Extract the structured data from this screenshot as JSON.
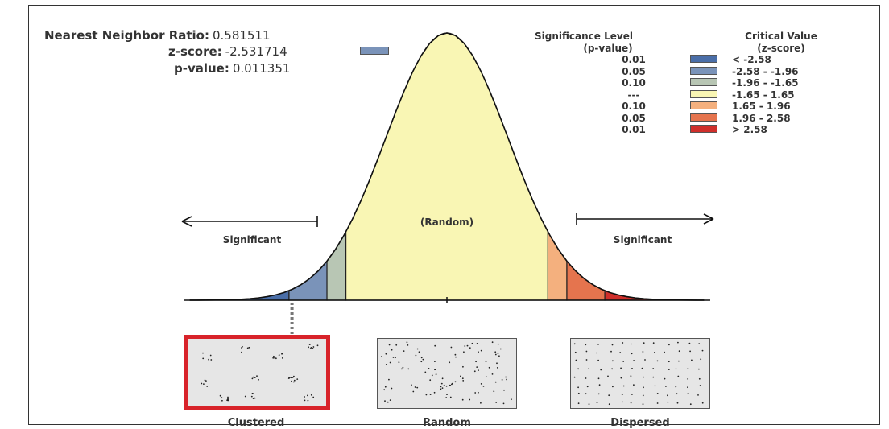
{
  "stats": {
    "nn_ratio": {
      "label": "Nearest Neighbor Ratio:",
      "value": "0.581511"
    },
    "z_score": {
      "label": "z-score:",
      "value": "-2.531714",
      "swatch_color": "#7a93b9"
    },
    "p_value": {
      "label": "p-value:",
      "value": "0.011351"
    }
  },
  "legend": {
    "sig_header": [
      "Significance Level",
      "(p-value)"
    ],
    "crit_header": [
      "Critical Value",
      "(z-score)"
    ],
    "rows": [
      {
        "p": "0.01",
        "color": "#4a6ea8",
        "z": "< -2.58"
      },
      {
        "p": "0.05",
        "color": "#7a93b9",
        "z": "-2.58 - -1.96"
      },
      {
        "p": "0.10",
        "color": "#b8c6b4",
        "z": "-1.96 - -1.65"
      },
      {
        "p": "---",
        "color": "#f9f6b4",
        "z": "-1.65 - 1.65"
      },
      {
        "p": "0.10",
        "color": "#f4b07e",
        "z": "1.65 - 1.96"
      },
      {
        "p": "0.05",
        "color": "#e5744e",
        "z": "1.96 - 2.58"
      },
      {
        "p": "0.01",
        "color": "#cf2f2b",
        "z": "> 2.58"
      }
    ]
  },
  "curve": {
    "center_label": "(Random)",
    "left_label": "Significant",
    "right_label": "Significant",
    "regions": [
      {
        "from": -4.2,
        "to": -2.58,
        "color": "#4a6ea8"
      },
      {
        "from": -2.58,
        "to": -1.96,
        "color": "#7a93b9"
      },
      {
        "from": -1.96,
        "to": -1.65,
        "color": "#b8c6b4"
      },
      {
        "from": -1.65,
        "to": 1.65,
        "color": "#f9f6b4"
      },
      {
        "from": 1.65,
        "to": 1.96,
        "color": "#f4b07e"
      },
      {
        "from": 1.96,
        "to": 2.58,
        "color": "#e5744e"
      },
      {
        "from": 2.58,
        "to": 4.2,
        "color": "#cf2f2b"
      }
    ],
    "marker_z": -2.531714
  },
  "panels": [
    {
      "id": "clustered",
      "label": "Clustered",
      "highlight": true
    },
    {
      "id": "random",
      "label": "Random",
      "highlight": false
    },
    {
      "id": "dispersed",
      "label": "Dispersed",
      "highlight": false
    }
  ]
}
